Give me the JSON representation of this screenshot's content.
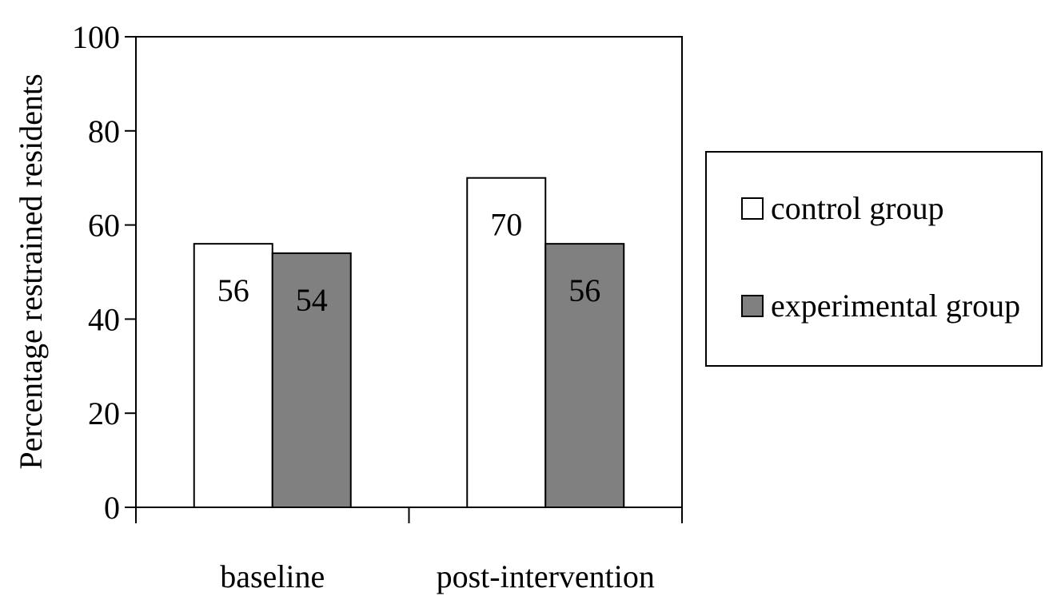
{
  "chart_data": {
    "type": "bar",
    "title": "",
    "xlabel": "",
    "ylabel": "Percentage restrained residents",
    "ylim": [
      0,
      100
    ],
    "yticks": [
      0,
      20,
      40,
      60,
      80,
      100
    ],
    "categories": [
      "baseline",
      "post-intervention"
    ],
    "series": [
      {
        "name": "control group",
        "values": [
          56,
          70
        ],
        "color": "#ffffff"
      },
      {
        "name": "experimental group",
        "values": [
          54,
          56
        ],
        "color": "#808080"
      }
    ],
    "grid": false,
    "legend": "right"
  }
}
